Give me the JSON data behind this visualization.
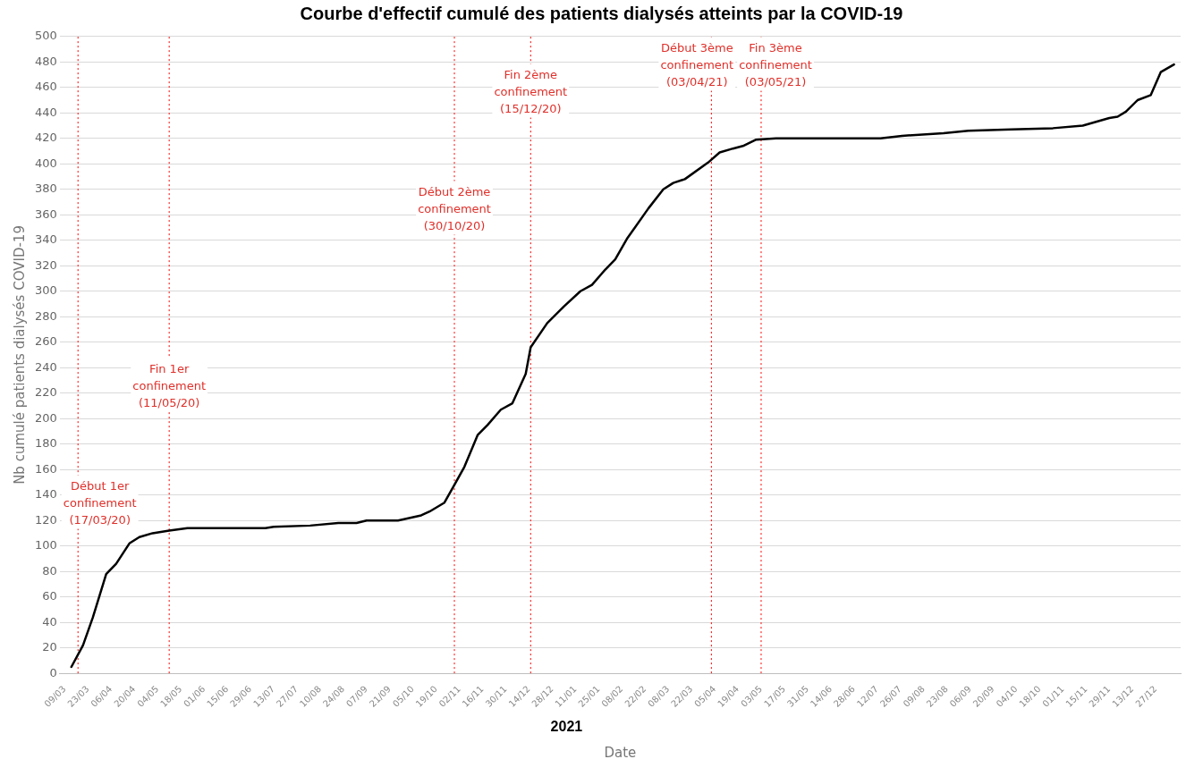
{
  "chart_data": {
    "type": "line",
    "title": "Courbe d'effectif cumulé des patients dialysés atteints par la COVID-19",
    "xlabel": "Date",
    "ylabel": "Nb cumulé patients dialysés COVID-19",
    "series": [
      {
        "color": "#000000",
        "x": [
          "2020-03-13",
          "2020-03-20",
          "2020-03-26",
          "2020-04-03",
          "2020-04-09",
          "2020-04-17",
          "2020-04-23",
          "2020-05-01",
          "2020-05-11",
          "2020-05-22",
          "2020-06-04",
          "2020-07-08",
          "2020-07-13",
          "2020-08-04",
          "2020-08-21",
          "2020-09-01",
          "2020-09-07",
          "2020-09-26",
          "2020-10-10",
          "2020-10-15",
          "2020-10-24",
          "2020-10-30",
          "2020-11-05",
          "2020-11-13",
          "2020-11-19",
          "2020-11-27",
          "2020-12-04",
          "2020-12-12",
          "2020-12-15",
          "2020-12-25",
          "2021-01-04",
          "2021-01-14",
          "2021-01-21",
          "2021-01-29",
          "2021-02-04",
          "2021-02-11",
          "2021-02-24",
          "2021-03-05",
          "2021-03-11",
          "2021-03-18",
          "2021-04-01",
          "2021-04-08",
          "2021-04-16",
          "2021-04-22",
          "2021-04-30",
          "2021-05-12",
          "2021-07-14",
          "2021-07-27",
          "2021-08-21",
          "2021-09-05",
          "2021-10-01",
          "2021-10-26",
          "2021-11-13",
          "2021-11-29",
          "2021-12-04",
          "2021-12-09",
          "2021-12-16",
          "2021-12-24",
          "2021-12-30",
          "2022-01-07"
        ],
        "values": [
          5,
          22,
          44,
          78,
          86,
          102,
          107,
          110,
          112,
          114,
          114,
          114,
          115,
          116,
          118,
          118,
          120,
          120,
          124,
          127,
          134,
          148,
          162,
          187,
          195,
          207,
          212,
          235,
          256,
          275,
          288,
          300,
          305,
          317,
          325,
          341,
          365,
          380,
          385,
          388,
          401,
          409,
          412,
          414,
          419,
          420,
          420,
          422,
          424,
          426,
          427,
          428,
          430,
          436,
          437,
          441,
          450,
          454,
          472,
          478
        ]
      }
    ],
    "xlim": [
      "2020-03-06",
      "2022-01-11"
    ],
    "xticks": [
      {
        "value": "2020-03-09",
        "label": "09/03"
      },
      {
        "value": "2020-03-23",
        "label": "23/03"
      },
      {
        "value": "2020-04-06",
        "label": "06/04"
      },
      {
        "value": "2020-04-20",
        "label": "20/04"
      },
      {
        "value": "2020-05-04",
        "label": "04/05"
      },
      {
        "value": "2020-05-18",
        "label": "18/05"
      },
      {
        "value": "2020-06-01",
        "label": "01/06"
      },
      {
        "value": "2020-06-15",
        "label": "15/06"
      },
      {
        "value": "2020-06-29",
        "label": "29/06"
      },
      {
        "value": "2020-07-13",
        "label": "13/07"
      },
      {
        "value": "2020-07-27",
        "label": "27/07"
      },
      {
        "value": "2020-08-10",
        "label": "10/08"
      },
      {
        "value": "2020-08-24",
        "label": "24/08"
      },
      {
        "value": "2020-09-07",
        "label": "07/09"
      },
      {
        "value": "2020-09-21",
        "label": "21/09"
      },
      {
        "value": "2020-10-05",
        "label": "05/10"
      },
      {
        "value": "2020-10-19",
        "label": "19/10"
      },
      {
        "value": "2020-11-02",
        "label": "02/11"
      },
      {
        "value": "2020-11-16",
        "label": "16/11"
      },
      {
        "value": "2020-11-30",
        "label": "30/11"
      },
      {
        "value": "2020-12-14",
        "label": "14/12"
      },
      {
        "value": "2020-12-28",
        "label": "28/12"
      },
      {
        "value": "2021-01-11",
        "label": "11/01"
      },
      {
        "value": "2021-01-25",
        "label": "25/01"
      },
      {
        "value": "2021-02-08",
        "label": "08/02"
      },
      {
        "value": "2021-02-22",
        "label": "22/02"
      },
      {
        "value": "2021-03-08",
        "label": "08/03"
      },
      {
        "value": "2021-03-22",
        "label": "22/03"
      },
      {
        "value": "2021-04-05",
        "label": "05/04"
      },
      {
        "value": "2021-04-19",
        "label": "19/04"
      },
      {
        "value": "2021-05-03",
        "label": "03/05"
      },
      {
        "value": "2021-05-17",
        "label": "17/05"
      },
      {
        "value": "2021-05-31",
        "label": "31/05"
      },
      {
        "value": "2021-06-14",
        "label": "14/06"
      },
      {
        "value": "2021-06-28",
        "label": "28/06"
      },
      {
        "value": "2021-07-12",
        "label": "12/07"
      },
      {
        "value": "2021-07-26",
        "label": "26/07"
      },
      {
        "value": "2021-08-09",
        "label": "09/08"
      },
      {
        "value": "2021-08-23",
        "label": "23/08"
      },
      {
        "value": "2021-09-06",
        "label": "06/09"
      },
      {
        "value": "2021-09-20",
        "label": "20/09"
      },
      {
        "value": "2021-10-04",
        "label": "04/10"
      },
      {
        "value": "2021-10-18",
        "label": "18/10"
      },
      {
        "value": "2021-11-01",
        "label": "01/11"
      },
      {
        "value": "2021-11-15",
        "label": "15/11"
      },
      {
        "value": "2021-11-29",
        "label": "29/11"
      },
      {
        "value": "2021-12-13",
        "label": "13/12"
      },
      {
        "value": "2021-12-27",
        "label": "27/12"
      }
    ],
    "ylim": [
      0,
      500
    ],
    "yticks": [
      0,
      20,
      40,
      60,
      80,
      100,
      120,
      140,
      160,
      180,
      200,
      220,
      240,
      260,
      280,
      300,
      320,
      340,
      360,
      380,
      400,
      420,
      440,
      460,
      480,
      500
    ],
    "grid": "y",
    "legend": false,
    "marker": "none",
    "line_style": "solid",
    "ref_lines": [
      {
        "axis": "x",
        "value": "2020-03-17",
        "color": "#ff0000",
        "line_style": "dotted"
      },
      {
        "axis": "x",
        "value": "2020-05-11",
        "color": "#ff0000",
        "line_style": "dotted"
      },
      {
        "axis": "x",
        "value": "2020-10-30",
        "color": "#ff0000",
        "line_style": "dotted"
      },
      {
        "axis": "x",
        "value": "2020-12-15",
        "color": "#ff0000",
        "line_style": "dotted"
      },
      {
        "axis": "x",
        "value": "2021-04-03",
        "color": "#ff0000",
        "line_style": "dotted"
      },
      {
        "axis": "x",
        "value": "2021-05-03",
        "color": "#ff0000",
        "line_style": "dotted"
      }
    ],
    "annotations": [
      {
        "text": "Début 1er confinement (17/03/20)",
        "x": "2020-03-17",
        "y": 112
      },
      {
        "text": "Fin 1er confinement (11/05/20)",
        "x": "2020-05-11",
        "y": 204
      },
      {
        "text": "Début 2ème confinement (30/10/20)",
        "x": "2020-10-30",
        "y": 343
      },
      {
        "text": "Fin 2ème confinement (15/12/20)",
        "x": "2020-12-15",
        "y": 435
      },
      {
        "text": "Début 3ème confinement (03/04/21)",
        "x": "2021-04-03",
        "y": 456
      },
      {
        "text": "Fin 3ème confinement (03/05/21)",
        "x": "2021-05-03",
        "y": 456
      },
      "2021"
    ]
  }
}
